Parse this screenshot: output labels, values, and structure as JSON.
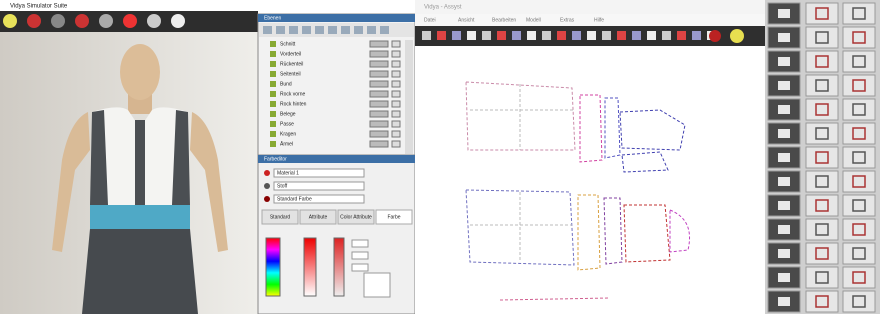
{
  "windows": {
    "left": {
      "title": "Vidya Simulator Suite"
    },
    "right": {
      "title": "Vidya - Assyst",
      "menu": [
        "Datei",
        "Ansicht",
        "Bearbeiten",
        "Modell",
        "Extras",
        "Hilfe"
      ]
    }
  },
  "tree": {
    "title": "Ebenen",
    "items": [
      "Schnitt",
      "Vorderteil",
      "Rückenteil",
      "Seitenteil",
      "Bund",
      "Rock vorne",
      "Rock hinten",
      "Belege",
      "Passe",
      "Kragen",
      "Ärmel"
    ]
  },
  "color_editor": {
    "title": "Farbeditor",
    "fields": [
      "Material 1",
      "Stoff",
      "Standard Farbe"
    ],
    "tabs": [
      "Standard",
      "Attribute",
      "Color Attribute",
      "Farbe"
    ]
  }
}
